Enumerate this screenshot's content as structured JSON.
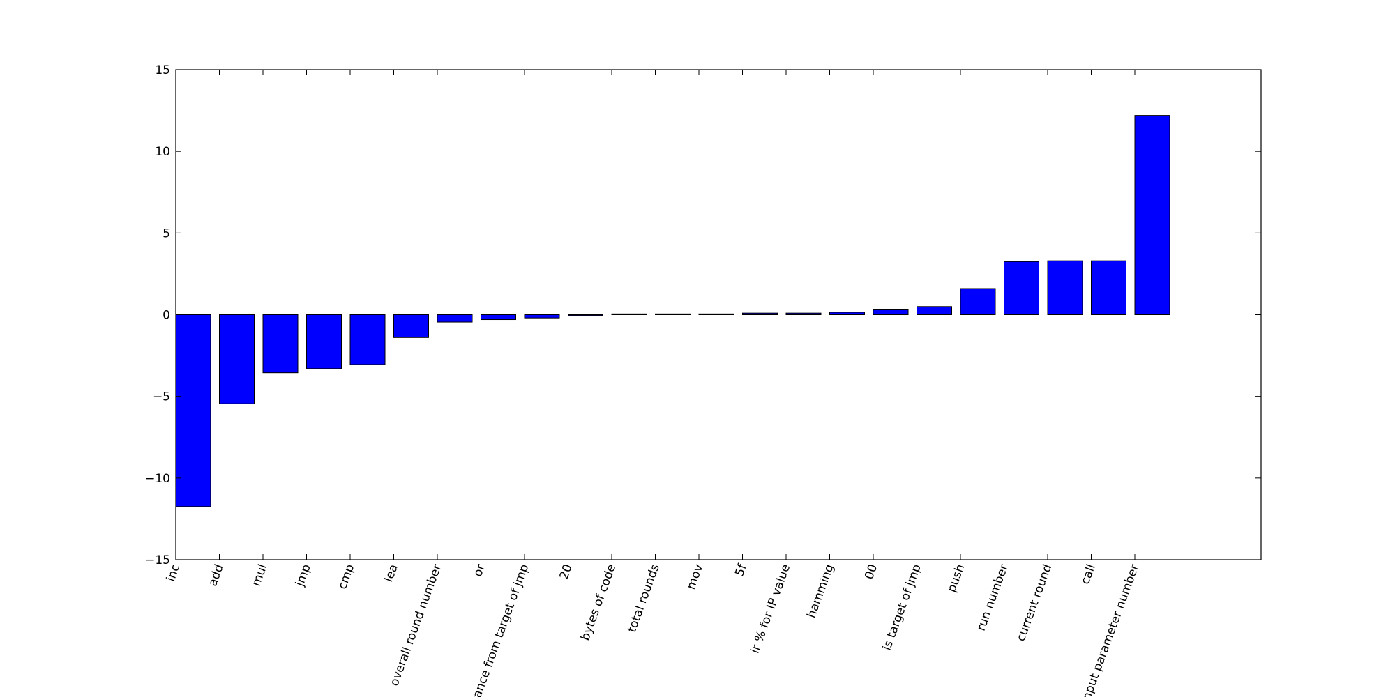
{
  "chart_data": {
    "type": "bar",
    "title": "",
    "xlabel": "",
    "ylabel": "",
    "ylim": [
      -15,
      15
    ],
    "yticks": [
      -15,
      -10,
      -5,
      0,
      5,
      10,
      15
    ],
    "ytick_labels": [
      "−15",
      "−10",
      "−5",
      "0",
      "5",
      "10",
      "15"
    ],
    "grid": false,
    "legend": "none",
    "bar_color": "#0000ff",
    "edge_color": "#000000",
    "categories": [
      "inc",
      "add",
      "mul",
      "jmp",
      "cmp",
      "lea",
      "overall round number",
      "or",
      "distance from target of jmp",
      "20",
      "bytes of code",
      "total rounds",
      "mov",
      "5f",
      "ir % for IP value",
      "hamming",
      "00",
      "is target of jmp",
      "push",
      "run number",
      "current round",
      "call",
      "input parameter number"
    ],
    "values": [
      -11.75,
      -5.45,
      -3.55,
      -3.3,
      -3.05,
      -1.4,
      -0.45,
      -0.3,
      -0.2,
      -0.05,
      0.05,
      0.05,
      0.05,
      0.1,
      0.1,
      0.15,
      0.3,
      0.5,
      1.6,
      3.25,
      3.3,
      3.3,
      12.2
    ]
  }
}
